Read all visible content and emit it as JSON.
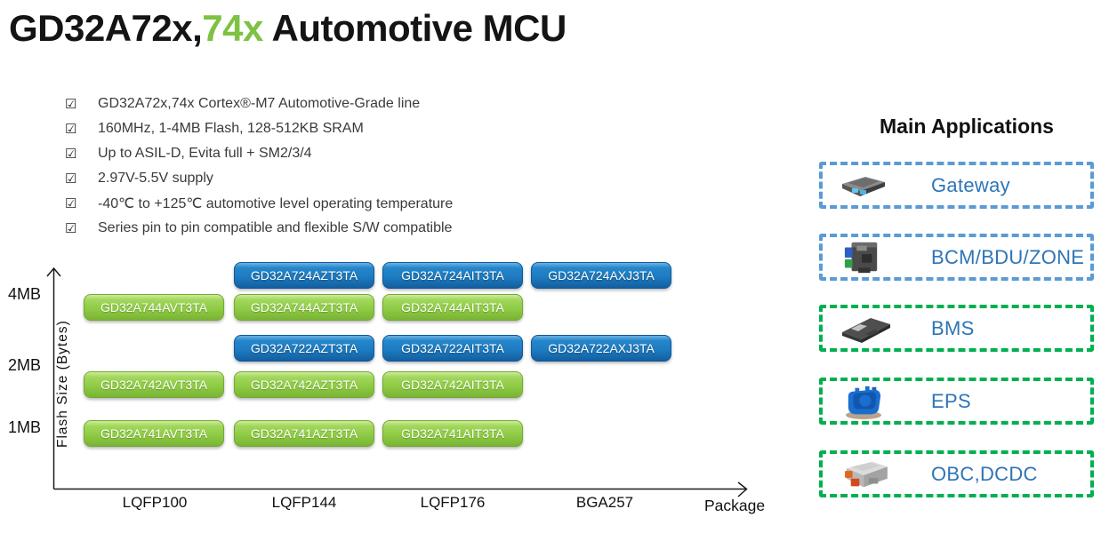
{
  "title": {
    "black_part": "GD32A72x,",
    "green_part": "74x",
    "rest_part": " Automotive MCU",
    "accent_color": "#7DC242"
  },
  "bullets": {
    "checkbox_glyph": "☑",
    "items": [
      "GD32A72x,74x Cortex®-M7 Automotive-Grade line",
      "160MHz, 1-4MB Flash, 128-512KB SRAM",
      "Up to ASIL-D, Evita full + SM2/3/4",
      "2.97V-5.5V supply",
      "-40℃ to +125℃ automotive level operating temperature",
      "Series pin to pin compatible and flexible S/W compatible"
    ]
  },
  "chart": {
    "type": "product-matrix",
    "y_axis_label": "Flash Size (Bytes)",
    "x_axis_label": "Package",
    "y_ticks": [
      "4MB",
      "2MB",
      "1MB"
    ],
    "x_ticks": [
      "LQFP100",
      "LQFP144",
      "LQFP176",
      "BGA257"
    ],
    "series_colors": {
      "GD32A72x_blue": "#1E7CC2",
      "GD32A74x_green": "#8FCB45"
    },
    "chips": [
      {
        "label": "GD32A724AZT3TA",
        "series": "GD32A724",
        "package": "LQFP144",
        "color": "blue"
      },
      {
        "label": "GD32A724AIT3TA",
        "series": "GD32A724",
        "package": "LQFP176",
        "color": "blue"
      },
      {
        "label": "GD32A724AXJ3TA",
        "series": "GD32A724",
        "package": "BGA257",
        "color": "blue"
      },
      {
        "label": "GD32A744AVT3TA",
        "series": "GD32A744",
        "package": "LQFP100",
        "color": "green"
      },
      {
        "label": "GD32A744AZT3TA",
        "series": "GD32A744",
        "package": "LQFP144",
        "color": "green"
      },
      {
        "label": "GD32A744AIT3TA",
        "series": "GD32A744",
        "package": "LQFP176",
        "color": "green"
      },
      {
        "label": "GD32A722AZT3TA",
        "series": "GD32A722",
        "package": "LQFP144",
        "color": "blue"
      },
      {
        "label": "GD32A722AIT3TA",
        "series": "GD32A722",
        "package": "LQFP176",
        "color": "blue"
      },
      {
        "label": "GD32A722AXJ3TA",
        "series": "GD32A722",
        "package": "BGA257",
        "color": "blue"
      },
      {
        "label": "GD32A742AVT3TA",
        "series": "GD32A742",
        "package": "LQFP100",
        "color": "green"
      },
      {
        "label": "GD32A742AZT3TA",
        "series": "GD32A742",
        "package": "LQFP144",
        "color": "green"
      },
      {
        "label": "GD32A742AIT3TA",
        "series": "GD32A742",
        "package": "LQFP176",
        "color": "green"
      },
      {
        "label": "GD32A741AVT3TA",
        "series": "GD32A741",
        "package": "LQFP100",
        "color": "green"
      },
      {
        "label": "GD32A741AZT3TA",
        "series": "GD32A741",
        "package": "LQFP144",
        "color": "green"
      },
      {
        "label": "GD32A741AIT3TA",
        "series": "GD32A741",
        "package": "LQFP176",
        "color": "green"
      }
    ]
  },
  "applications": {
    "heading": "Main Applications",
    "border_colors": {
      "blue": "#5B9BD5",
      "green": "#00B050"
    },
    "label_color": "#2E75B6",
    "items": [
      {
        "label": "Gateway",
        "border": "blue",
        "image": "gateway-module"
      },
      {
        "label": "BCM/BDU/ZONE",
        "border": "blue",
        "image": "bcm-module"
      },
      {
        "label": "BMS",
        "border": "green",
        "image": "bms-module"
      },
      {
        "label": "EPS",
        "border": "green",
        "image": "eps-module"
      },
      {
        "label": "OBC,DCDC",
        "border": "green",
        "image": "obc-module"
      }
    ]
  }
}
